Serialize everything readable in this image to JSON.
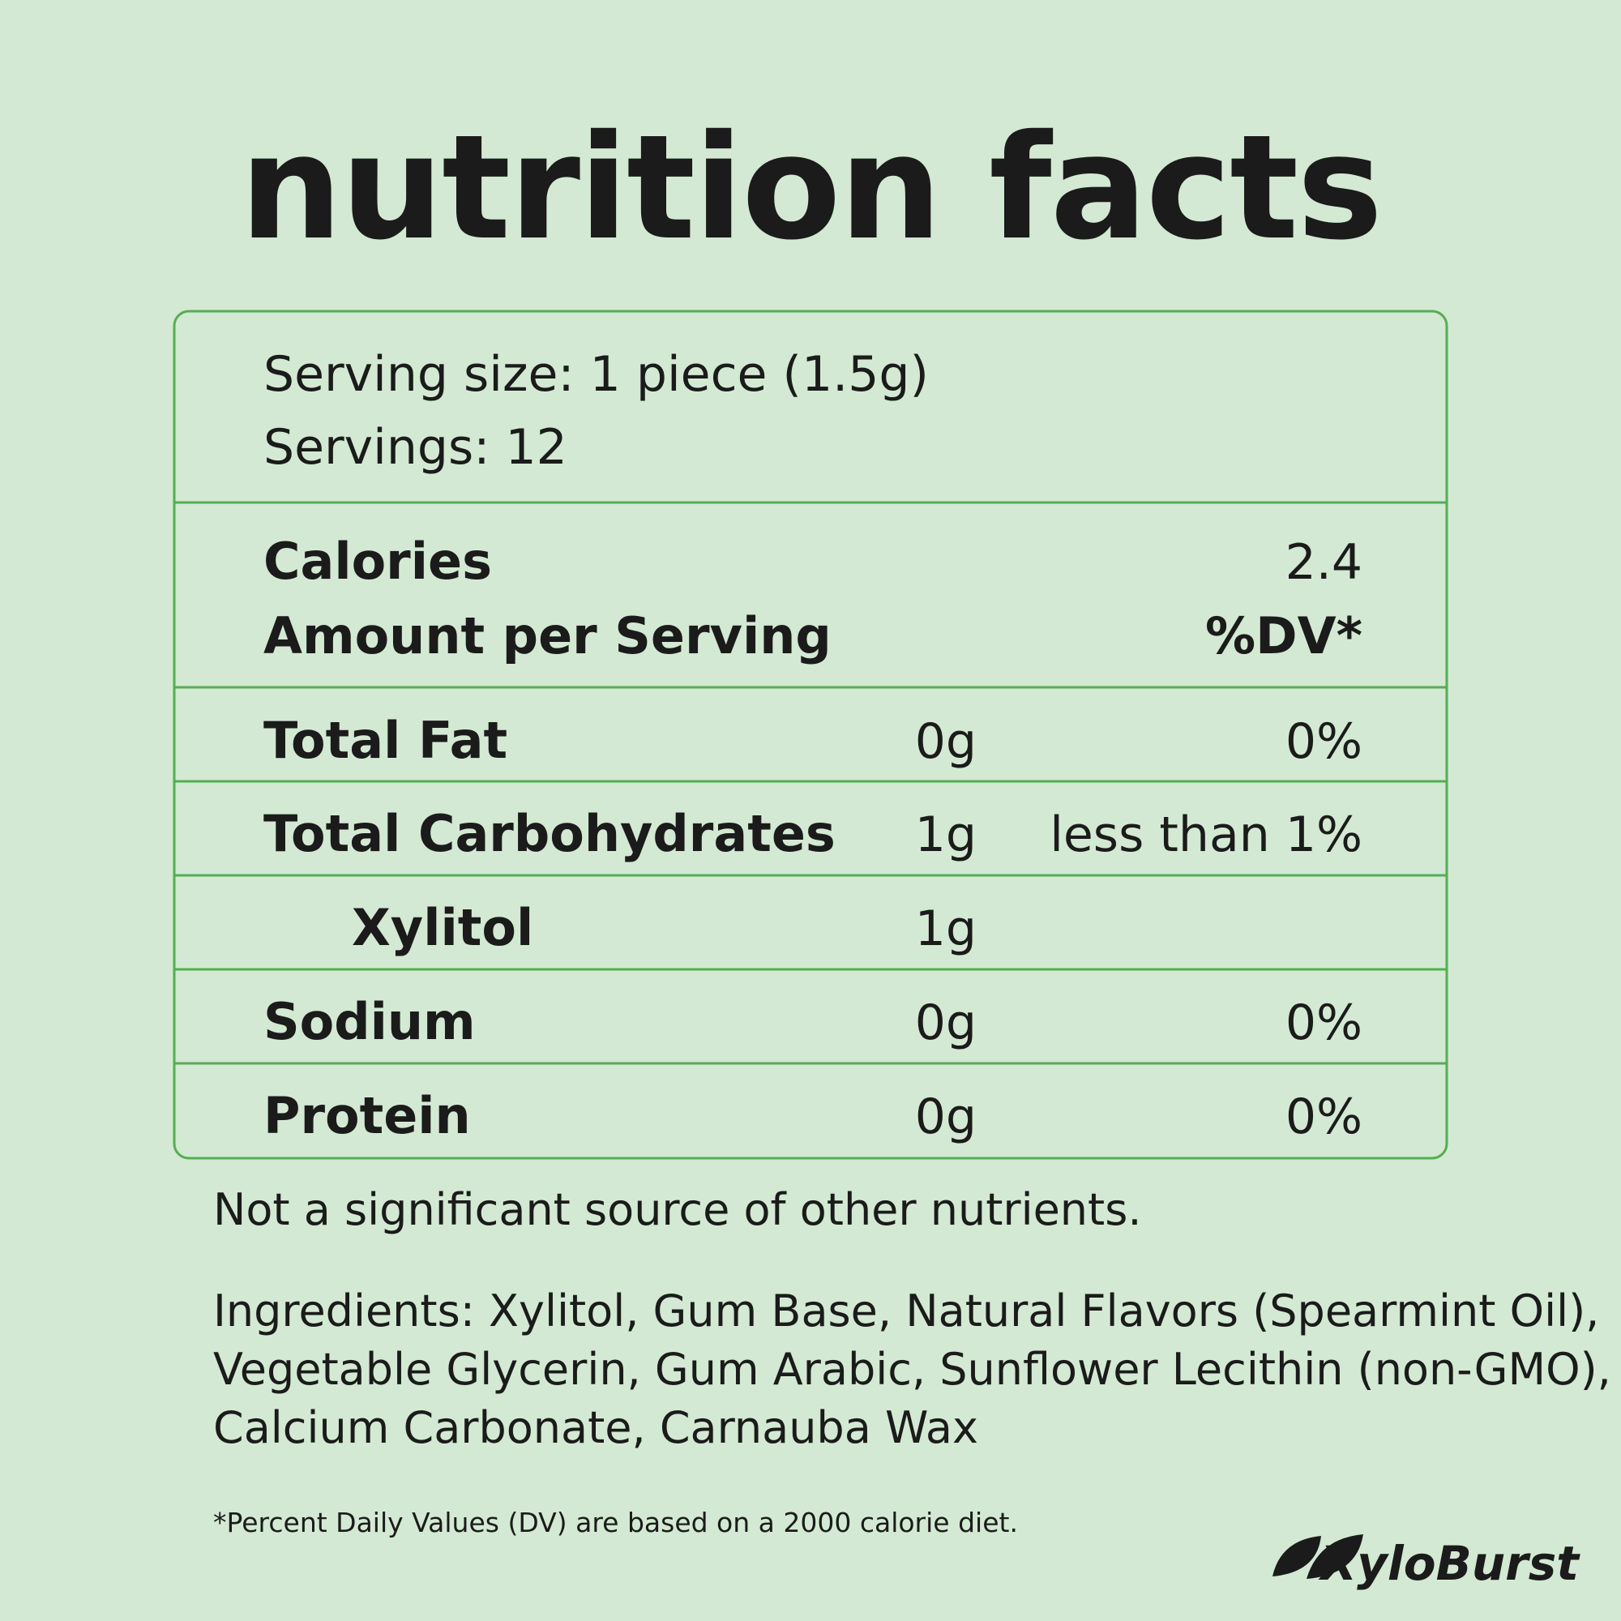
{
  "title": "nutrition facts",
  "serving": {
    "size": "Serving size: 1 piece (1.5g)",
    "servings": "Servings: 12"
  },
  "calories": {
    "label": "Calories",
    "value": "2.4"
  },
  "header": {
    "label": "Amount per Serving",
    "dv": "%DV*"
  },
  "rows": [
    {
      "name": "Total Fat",
      "amount": "0g",
      "dv": "0%"
    },
    {
      "name": "Total Carbohydrates",
      "amount": "1g",
      "dv": "less than 1%"
    },
    {
      "name": "Xylitol",
      "amount": "1g"
    },
    {
      "name": "Sodium",
      "amount": "0g",
      "dv": "0%"
    },
    {
      "name": "Protein",
      "amount": "0g",
      "dv": "0%"
    }
  ],
  "note": "Not a significant source of other nutrients.",
  "ingredients": [
    "Ingredients: Xylitol, Gum Base, Natural Flavors (Spearmint Oil),",
    "Vegetable Glycerin, Gum Arabic, Sunflower Lecithin (non-GMO),",
    "Calcium Carbonate, Carnauba Wax"
  ],
  "footnote": "*Percent Daily Values (DV) are based on a 2000 calorie diet.",
  "brand": "XyloBurst"
}
